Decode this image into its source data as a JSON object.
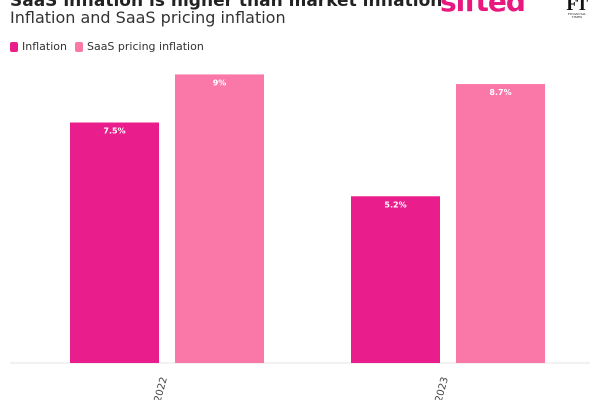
{
  "header": {
    "title": "SaaS inflation is higher than market inflation",
    "subtitle": "Inflation and SaaS pricing inflation"
  },
  "logos": {
    "sifted": "sifted",
    "ft_main": "FT",
    "ft_small": "FINANCIAL TIMES"
  },
  "colors": {
    "inflation": "#e91e8c",
    "saas": "#fa78a8"
  },
  "legend": [
    {
      "label": "Inflation",
      "color": "#e91e8c"
    },
    {
      "label": "SaaS pricing inflation",
      "color": "#fa78a8"
    }
  ],
  "chart_data": {
    "type": "bar",
    "categories": [
      "2022",
      "2023"
    ],
    "series": [
      {
        "name": "Inflation",
        "values": [
          7.5,
          5.2
        ],
        "labels": [
          "7.5%",
          "5.2%"
        ],
        "color": "#e91e8c"
      },
      {
        "name": "SaaS pricing inflation",
        "values": [
          9,
          8.7
        ],
        "labels": [
          "9%",
          "8.7%"
        ],
        "color": "#fa78a8"
      }
    ],
    "ylim": [
      0,
      9.2
    ],
    "grid": false,
    "legend_position": "top-left"
  }
}
